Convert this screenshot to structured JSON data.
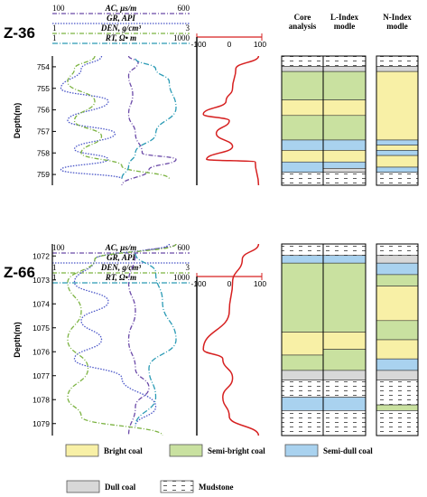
{
  "colors": {
    "bright_coal": "#f8f0a6",
    "semi_bright_coal": "#c9e1a0",
    "semi_dull_coal": "#a9d2ef",
    "dull_coal": "#d8d8d8",
    "mudstone": "#ffffff",
    "ac": "#6b4aa8",
    "gr": "#4a56c8",
    "den": "#7cb342",
    "rt": "#2b9bb5",
    "lindex": "#d62020"
  },
  "curve_headers": [
    {
      "key": "ac",
      "left": "100",
      "right": "600",
      "label": "AC, μs/m"
    },
    {
      "key": "gr",
      "left": "",
      "right": "",
      "label": "GR, API"
    },
    {
      "key": "den",
      "left": "1",
      "right": "3",
      "label": "DEN, g/cm³"
    },
    {
      "key": "rt",
      "left": "1",
      "right": "1000",
      "label": "RT, Ω• m"
    }
  ],
  "lindex_scale": [
    "-100",
    "0",
    "100"
  ],
  "column_headers": {
    "core": [
      "Core",
      "analysis"
    ],
    "lindex": [
      "L-Index",
      "modle"
    ],
    "nindex": [
      "N-Index",
      "modle"
    ]
  },
  "depth_label": "Depth(m)",
  "panels": [
    {
      "well": "Z-36",
      "depth_ticks": [
        "754",
        "755",
        "756",
        "757",
        "758",
        "759"
      ],
      "core": [
        {
          "type": "mudstone",
          "from": 0,
          "to": 0.08
        },
        {
          "type": "dull_coal",
          "from": 0.08,
          "to": 0.12
        },
        {
          "type": "semi_bright_coal",
          "from": 0.12,
          "to": 0.34
        },
        {
          "type": "bright_coal",
          "from": 0.34,
          "to": 0.46
        },
        {
          "type": "semi_bright_coal",
          "from": 0.46,
          "to": 0.65
        },
        {
          "type": "semi_dull_coal",
          "from": 0.65,
          "to": 0.73
        },
        {
          "type": "bright_coal",
          "from": 0.73,
          "to": 0.82
        },
        {
          "type": "semi_dull_coal",
          "from": 0.82,
          "to": 0.9
        },
        {
          "type": "mudstone",
          "from": 0.9,
          "to": 1.0
        }
      ],
      "lindex": [
        {
          "type": "mudstone",
          "from": 0,
          "to": 0.08
        },
        {
          "type": "dull_coal",
          "from": 0.08,
          "to": 0.12
        },
        {
          "type": "semi_bright_coal",
          "from": 0.12,
          "to": 0.34
        },
        {
          "type": "bright_coal",
          "from": 0.34,
          "to": 0.46
        },
        {
          "type": "semi_bright_coal",
          "from": 0.46,
          "to": 0.65
        },
        {
          "type": "semi_dull_coal",
          "from": 0.65,
          "to": 0.73
        },
        {
          "type": "bright_coal",
          "from": 0.73,
          "to": 0.82
        },
        {
          "type": "semi_dull_coal",
          "from": 0.82,
          "to": 0.87
        },
        {
          "type": "dull_coal",
          "from": 0.87,
          "to": 0.9
        },
        {
          "type": "mudstone",
          "from": 0.9,
          "to": 1.0
        }
      ],
      "nindex": [
        {
          "type": "mudstone",
          "from": 0,
          "to": 0.08
        },
        {
          "type": "dull_coal",
          "from": 0.08,
          "to": 0.12
        },
        {
          "type": "bright_coal",
          "from": 0.12,
          "to": 0.65
        },
        {
          "type": "semi_dull_coal",
          "from": 0.65,
          "to": 0.69
        },
        {
          "type": "bright_coal",
          "from": 0.69,
          "to": 0.73
        },
        {
          "type": "semi_dull_coal",
          "from": 0.73,
          "to": 0.77
        },
        {
          "type": "bright_coal",
          "from": 0.77,
          "to": 0.86
        },
        {
          "type": "semi_dull_coal",
          "from": 0.86,
          "to": 0.9
        },
        {
          "type": "mudstone",
          "from": 0.9,
          "to": 1.0
        }
      ]
    },
    {
      "well": "Z-66",
      "depth_ticks": [
        "1072",
        "1073",
        "1074",
        "1075",
        "1076",
        "1077",
        "1078",
        "1079"
      ],
      "core": [
        {
          "type": "mudstone",
          "from": 0,
          "to": 0.06
        },
        {
          "type": "semi_dull_coal",
          "from": 0.06,
          "to": 0.1
        },
        {
          "type": "semi_bright_coal",
          "from": 0.1,
          "to": 0.46
        },
        {
          "type": "bright_coal",
          "from": 0.46,
          "to": 0.58
        },
        {
          "type": "semi_bright_coal",
          "from": 0.58,
          "to": 0.66
        },
        {
          "type": "dull_coal",
          "from": 0.66,
          "to": 0.71
        },
        {
          "type": "mudstone",
          "from": 0.71,
          "to": 0.8
        },
        {
          "type": "semi_dull_coal",
          "from": 0.8,
          "to": 0.87
        },
        {
          "type": "mudstone",
          "from": 0.87,
          "to": 1.0
        }
      ],
      "lindex": [
        {
          "type": "mudstone",
          "from": 0,
          "to": 0.06
        },
        {
          "type": "semi_dull_coal",
          "from": 0.06,
          "to": 0.1
        },
        {
          "type": "semi_bright_coal",
          "from": 0.1,
          "to": 0.46
        },
        {
          "type": "bright_coal",
          "from": 0.46,
          "to": 0.55
        },
        {
          "type": "semi_bright_coal",
          "from": 0.55,
          "to": 0.66
        },
        {
          "type": "dull_coal",
          "from": 0.66,
          "to": 0.71
        },
        {
          "type": "mudstone",
          "from": 0.71,
          "to": 0.8
        },
        {
          "type": "semi_dull_coal",
          "from": 0.8,
          "to": 0.87
        },
        {
          "type": "mudstone",
          "from": 0.87,
          "to": 1.0
        }
      ],
      "nindex": [
        {
          "type": "mudstone",
          "from": 0,
          "to": 0.06
        },
        {
          "type": "dull_coal",
          "from": 0.06,
          "to": 0.1
        },
        {
          "type": "semi_dull_coal",
          "from": 0.1,
          "to": 0.16
        },
        {
          "type": "semi_bright_coal",
          "from": 0.16,
          "to": 0.22
        },
        {
          "type": "bright_coal",
          "from": 0.22,
          "to": 0.4
        },
        {
          "type": "semi_bright_coal",
          "from": 0.4,
          "to": 0.5
        },
        {
          "type": "bright_coal",
          "from": 0.5,
          "to": 0.6
        },
        {
          "type": "semi_dull_coal",
          "from": 0.6,
          "to": 0.66
        },
        {
          "type": "dull_coal",
          "from": 0.66,
          "to": 0.71
        },
        {
          "type": "mudstone",
          "from": 0.71,
          "to": 0.84
        },
        {
          "type": "semi_bright_coal",
          "from": 0.84,
          "to": 0.87
        },
        {
          "type": "mudstone",
          "from": 0.87,
          "to": 1.0
        }
      ]
    }
  ],
  "legend": [
    {
      "type": "bright_coal",
      "label": "Bright coal"
    },
    {
      "type": "semi_bright_coal",
      "label": "Semi-bright coal"
    },
    {
      "type": "semi_dull_coal",
      "label": "Semi-dull coal"
    },
    {
      "type": "dull_coal",
      "label": "Dull coal"
    },
    {
      "type": "mudstone",
      "label": "Mudstone"
    }
  ]
}
